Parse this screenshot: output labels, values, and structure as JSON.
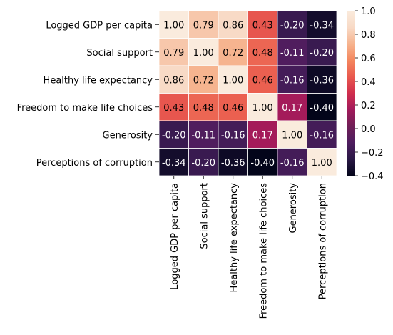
{
  "chart_data": {
    "type": "heatmap",
    "row_labels": [
      "Logged GDP per capita",
      "Social support",
      "Healthy life expectancy",
      "Freedom to make life choices",
      "Generosity",
      "Perceptions of corruption"
    ],
    "col_labels": [
      "Logged GDP per capita",
      "Social support",
      "Healthy life expectancy",
      "Freedom to make life choices",
      "Generosity",
      "Perceptions of corruption"
    ],
    "values": [
      [
        1.0,
        0.79,
        0.86,
        0.43,
        -0.2,
        -0.34
      ],
      [
        0.79,
        1.0,
        0.72,
        0.48,
        -0.11,
        -0.2
      ],
      [
        0.86,
        0.72,
        1.0,
        0.46,
        -0.16,
        -0.36
      ],
      [
        0.43,
        0.48,
        0.46,
        1.0,
        0.17,
        -0.4
      ],
      [
        -0.2,
        -0.11,
        -0.16,
        0.17,
        1.0,
        -0.16
      ],
      [
        -0.34,
        -0.2,
        -0.36,
        -0.4,
        -0.16,
        1.0
      ]
    ],
    "value_format": "0.00",
    "colormap": "rocket",
    "vmin": -0.4,
    "vmax": 1.0,
    "colorbar_ticks": [
      "1.0",
      "0.8",
      "0.6",
      "0.4",
      "0.2",
      "0.0",
      "−0.2",
      "−0.4"
    ],
    "colorbar_tick_values": [
      1.0,
      0.8,
      0.6,
      0.4,
      0.2,
      0.0,
      -0.2,
      -0.4
    ],
    "gridlines": "white",
    "colormap_stops": [
      "#03051a",
      "#2a1845",
      "#4e1d5f",
      "#701f57",
      "#a11a5b",
      "#d02e4d",
      "#e9594e",
      "#f4875e",
      "#f6b48f",
      "#f8dac6",
      "#faebdd"
    ]
  }
}
